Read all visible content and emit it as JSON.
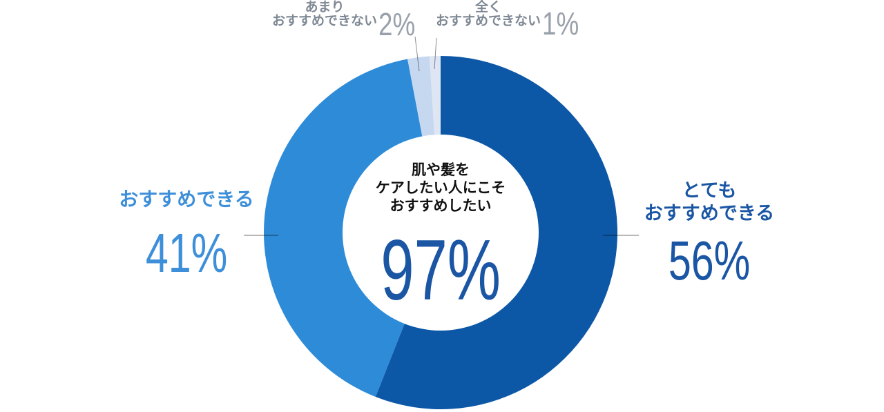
{
  "chart_data": {
    "type": "pie",
    "donut": true,
    "title": "肌や髪をケアしたい人にこそおすすめしたい 97%",
    "start_angle_deg": 0,
    "direction": "clockwise",
    "segments": [
      {
        "label": "とてもおすすめできる",
        "value": 56,
        "color": "#0D57A7"
      },
      {
        "label": "おすすめできる",
        "value": 41,
        "color": "#2E8BD8"
      },
      {
        "label": "あまりおすすめできない",
        "value": 2,
        "color": "#C6D8F0"
      },
      {
        "label": "全くおすすめできない",
        "value": 1,
        "color": "#DEE6F4"
      }
    ],
    "center_value": "97%",
    "center_text": "肌や髪をケアしたい人にこそおすすめしたい",
    "legend_position": "around-chart"
  },
  "labels": {
    "top_left": {
      "line1": "あまり",
      "line2": "おすすめできない",
      "value": "2%"
    },
    "top_right": {
      "line1": "全く",
      "line2": "おすすめできない",
      "value": "1%"
    },
    "left": {
      "line1": "おすすめできる",
      "value": "41%"
    },
    "right": {
      "line1": "とても",
      "line2": "おすすめできる",
      "value": "56%"
    },
    "center": {
      "line1": "肌や髪を",
      "line2": "ケアしたい人にこそ",
      "line3": "おすすめしたい",
      "value": "97%"
    }
  },
  "colors": {
    "dark_blue": "#0D57A7",
    "mid_blue": "#2E8BD8",
    "pale_blue": "#C6D8F0",
    "faint_blue": "#DEE6F4",
    "dark_text": "#1A56A4",
    "mid_text": "#3E8FD9",
    "gray_label": "#7E8894",
    "gray_number": "#99A1AB",
    "center_text": "#111111"
  }
}
